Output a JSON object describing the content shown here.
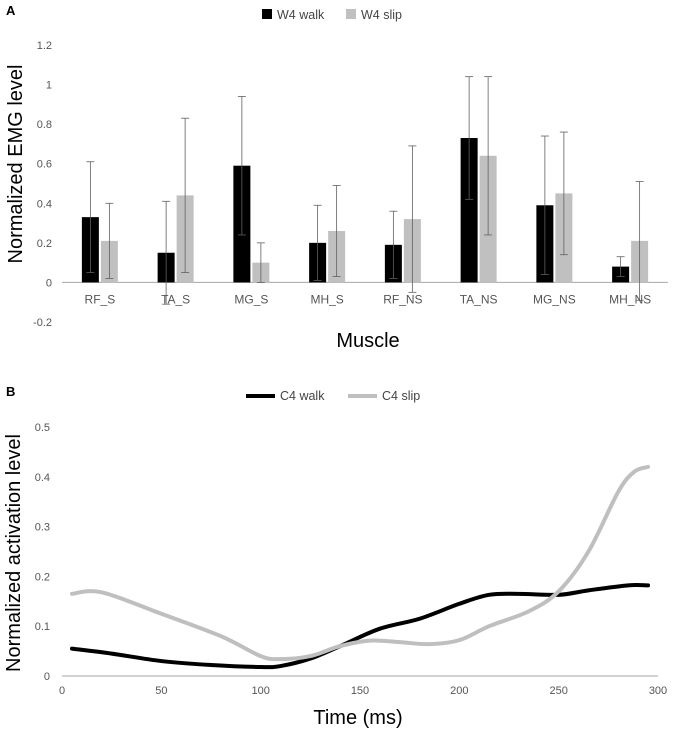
{
  "chart_data": [
    {
      "type": "bar",
      "panel_label": "A",
      "legend_position": "top-center",
      "categories": [
        "RF_S",
        "TA_S",
        "MG_S",
        "MH_S",
        "RF_NS",
        "TA_NS",
        "MG_NS",
        "MH_NS"
      ],
      "series": [
        {
          "name": "W4 walk",
          "color": "#000000",
          "values": [
            0.33,
            0.15,
            0.59,
            0.2,
            0.19,
            0.73,
            0.39,
            0.08
          ],
          "error": [
            0.28,
            0.26,
            0.35,
            0.19,
            0.17,
            0.31,
            0.35,
            0.05
          ]
        },
        {
          "name": "W4 slip",
          "color": "#c0c0c0",
          "values": [
            0.21,
            0.44,
            0.1,
            0.26,
            0.32,
            0.64,
            0.45,
            0.21
          ],
          "error": [
            0.19,
            0.39,
            0.1,
            0.23,
            0.37,
            0.4,
            0.31,
            0.3
          ]
        }
      ],
      "xlabel": "Muscle",
      "ylabel": "Normalized EMG level",
      "ylim": [
        -0.2,
        1.2
      ],
      "yticks": [
        -0.2,
        0,
        0.2,
        0.4,
        0.6,
        0.8,
        1,
        1.2
      ],
      "ytick_labels": [
        "-0.2",
        "0",
        "0.2",
        "0.4",
        "0.6",
        "0.8",
        "1",
        "1.2"
      ],
      "grid": false
    },
    {
      "type": "line",
      "panel_label": "B",
      "legend_position": "top-center",
      "series": [
        {
          "name": "C4 walk",
          "color": "#000000",
          "x": [
            5,
            25,
            50,
            75,
            100,
            110,
            125,
            140,
            160,
            180,
            200,
            215,
            230,
            250,
            265,
            285,
            295
          ],
          "y": [
            0.055,
            0.045,
            0.03,
            0.022,
            0.018,
            0.02,
            0.035,
            0.06,
            0.095,
            0.115,
            0.145,
            0.163,
            0.165,
            0.163,
            0.172,
            0.182,
            0.182
          ]
        },
        {
          "name": "C4 slip",
          "color": "#bfbfbf",
          "x": [
            5,
            20,
            50,
            80,
            100,
            110,
            125,
            140,
            155,
            170,
            185,
            200,
            215,
            235,
            250,
            265,
            280,
            288,
            295
          ],
          "y": [
            0.165,
            0.168,
            0.125,
            0.08,
            0.04,
            0.034,
            0.04,
            0.06,
            0.071,
            0.068,
            0.064,
            0.072,
            0.1,
            0.13,
            0.17,
            0.25,
            0.37,
            0.41,
            0.42
          ]
        }
      ],
      "xlabel": "Time (ms)",
      "ylabel": "Normalized activation level",
      "xlim": [
        0,
        300
      ],
      "ylim": [
        0,
        0.5
      ],
      "xticks": [
        0,
        50,
        100,
        150,
        200,
        250,
        300
      ],
      "xtick_labels": [
        "0",
        "50",
        "100",
        "150",
        "200",
        "250",
        "300"
      ],
      "yticks": [
        0,
        0.1,
        0.2,
        0.3,
        0.4,
        0.5
      ],
      "ytick_labels": [
        "0",
        "0.1",
        "0.2",
        "0.3",
        "0.4",
        "0.5"
      ],
      "grid": false
    }
  ]
}
